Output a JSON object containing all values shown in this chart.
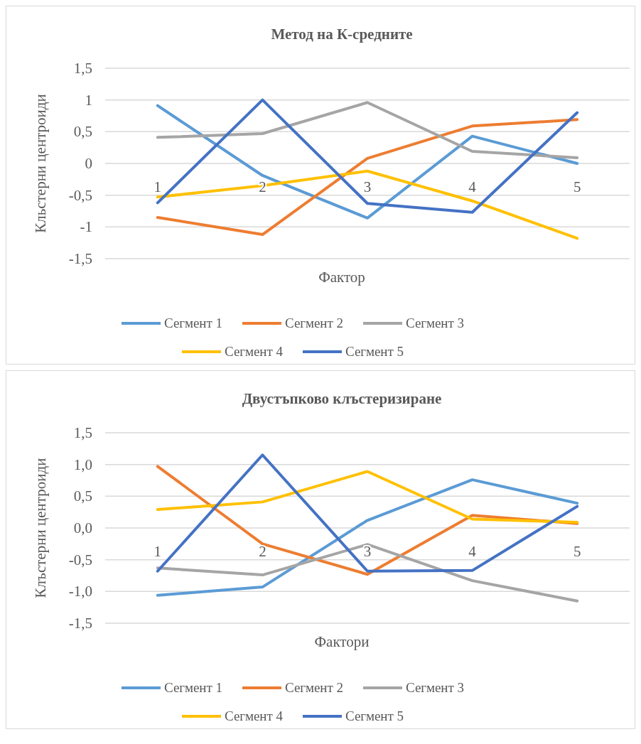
{
  "chart_data": [
    {
      "type": "line",
      "title": "Метод на К-средните",
      "xlabel": "Фактор",
      "ylabel": "Кльстерни центроиди",
      "categories": [
        "1",
        "2",
        "3",
        "4",
        "5"
      ],
      "series": [
        {
          "name": "Сегмент 1",
          "color": "#5b9bd5",
          "values": [
            0.91,
            -0.19,
            -0.86,
            0.43,
            0.0
          ]
        },
        {
          "name": "Сегмент 2",
          "color": "#ed7d31",
          "values": [
            -0.85,
            -1.12,
            0.08,
            0.59,
            0.69
          ]
        },
        {
          "name": "Сегмент 3",
          "color": "#a5a5a5",
          "values": [
            0.41,
            0.47,
            0.96,
            0.19,
            0.09
          ]
        },
        {
          "name": "Сегмент 4",
          "color": "#ffc000",
          "values": [
            -0.53,
            -0.35,
            -0.12,
            -0.59,
            -1.18
          ]
        },
        {
          "name": "Сегмент 5",
          "color": "#4472c4",
          "values": [
            -0.62,
            1.0,
            -0.63,
            -0.77,
            0.8
          ]
        }
      ],
      "ylim": [
        -1.5,
        1.5
      ],
      "yticks": [
        {
          "value": -1.5,
          "label": "-1,5"
        },
        -1,
        {
          "value": -0.5,
          "label": "-0,5"
        },
        0,
        {
          "value": 0.5,
          "label": "0,5"
        },
        1,
        {
          "value": 1.5,
          "label": "1,5"
        }
      ],
      "grid": "y",
      "legend": "bottom",
      "marker": "none"
    },
    {
      "type": "line",
      "title": "Двустъпково клъстеризиране",
      "xlabel": "Фактори",
      "ylabel": "Клъстерни центроиди",
      "categories": [
        "1",
        "2",
        "3",
        "4",
        "5"
      ],
      "series": [
        {
          "name": "Сегмент 1",
          "color": "#5b9bd5",
          "values": [
            -1.06,
            -0.93,
            0.12,
            0.76,
            0.39
          ]
        },
        {
          "name": "Сегмент 2",
          "color": "#ed7d31",
          "values": [
            0.97,
            -0.25,
            -0.73,
            0.2,
            0.07
          ]
        },
        {
          "name": "Сегмент 3",
          "color": "#a5a5a5",
          "values": [
            -0.63,
            -0.74,
            -0.26,
            -0.83,
            -1.15
          ]
        },
        {
          "name": "Сегмент 4",
          "color": "#ffc000",
          "values": [
            0.29,
            0.41,
            0.89,
            0.14,
            0.09
          ]
        },
        {
          "name": "Сегмент 5",
          "color": "#4472c4",
          "values": [
            -0.68,
            1.15,
            -0.68,
            -0.67,
            0.34
          ]
        }
      ],
      "ylim": [
        -1.5,
        1.5
      ],
      "yticks": [
        {
          "value": -1.5,
          "label": "-1,5"
        },
        {
          "value": -1,
          "label": "-1,0"
        },
        {
          "value": -0.5,
          "label": "-0,5"
        },
        {
          "value": 0,
          "label": "0,0"
        },
        {
          "value": 0.5,
          "label": "0,5"
        },
        {
          "value": 1,
          "label": "1,0"
        },
        {
          "value": 1.5,
          "label": "1,5"
        }
      ],
      "grid": "y",
      "legend": "bottom",
      "marker": "none"
    }
  ]
}
